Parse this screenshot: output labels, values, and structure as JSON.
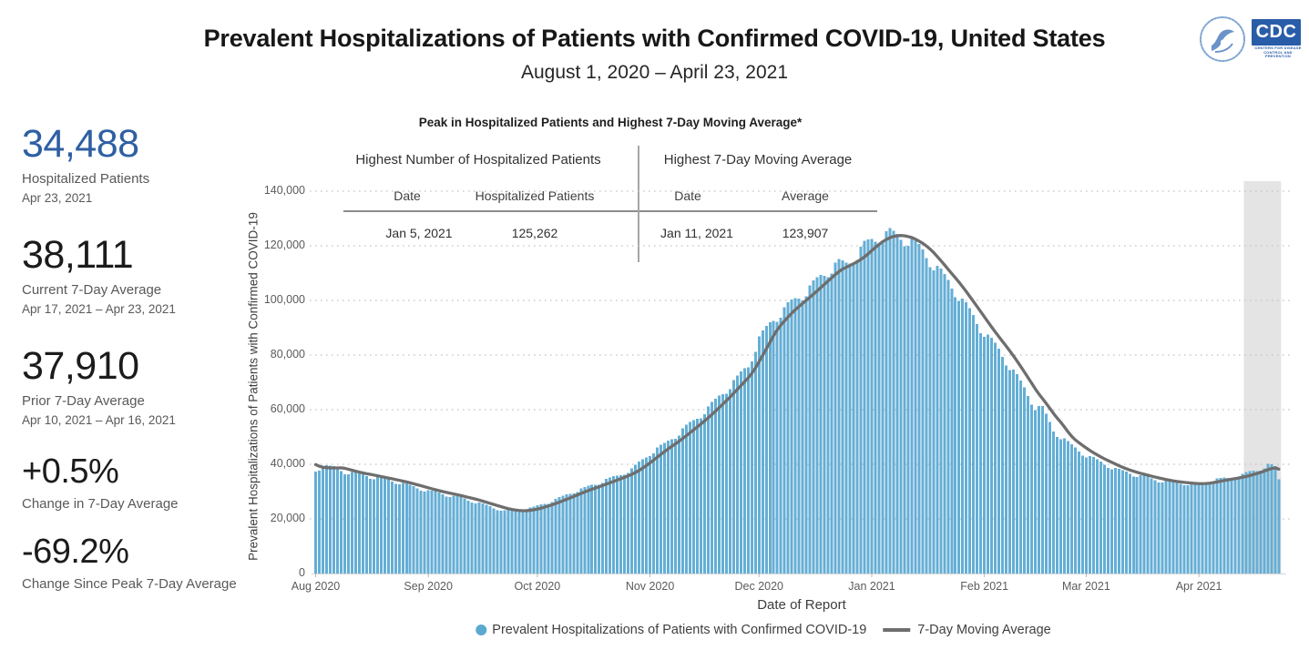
{
  "header": {
    "title": "Prevalent Hospitalizations of Patients with Confirmed COVID-19, United States",
    "subtitle": "August 1, 2020 – April 23, 2021",
    "logos": {
      "hhs_icon": "hhs-eagle-seal",
      "cdc_text": "CDC",
      "cdc_subtext_line1": "CENTERS FOR DISEASE",
      "cdc_subtext_line2": "CONTROL AND PREVENTION"
    }
  },
  "stats": [
    {
      "value": "34,488",
      "label": "Hospitalized Patients",
      "sublabel": "Apr 23, 2021",
      "color": "#2e5fa3"
    },
    {
      "value": "38,111",
      "label": "Current 7-Day Average",
      "sublabel": "Apr 17, 2021 – Apr 23, 2021",
      "color": "#1b1b1b"
    },
    {
      "value": "37,910",
      "label": "Prior 7-Day Average",
      "sublabel": "Apr 10, 2021 – Apr 16, 2021",
      "color": "#1b1b1b"
    },
    {
      "value": "+0.5%",
      "label": "Change in 7-Day Average",
      "sublabel": "",
      "color": "#1b1b1b"
    },
    {
      "value": "-69.2%",
      "label": "Change Since Peak 7-Day Average",
      "sublabel": "",
      "color": "#1b1b1b"
    }
  ],
  "peak_table": {
    "title": "Peak in Hospitalized Patients and Highest 7-Day Moving Average*",
    "group1_header": "Highest Number of Hospitalized Patients",
    "group2_header": "Highest 7-Day Moving Average",
    "col_headers": [
      "Date",
      "Hospitalized Patients",
      "Date",
      "Average"
    ],
    "row": [
      "Jan 5, 2021",
      "125,262",
      "Jan 11, 2021",
      "123,907"
    ]
  },
  "legend": {
    "items": [
      {
        "swatch": "dot",
        "color": "#5ba9d0",
        "label": "Prevalent Hospitalizations of Patients with Confirmed COVID-19"
      },
      {
        "swatch": "line",
        "color": "#6e6e6e",
        "label": "7-Day Moving Average"
      }
    ]
  },
  "chart_data": {
    "type": "bar",
    "title": "Prevalent Hospitalizations of Patients with Confirmed COVID-19, United States",
    "xlabel": "Date of Report",
    "ylabel": "Prevalent Hospitalizations of Patients with Confirmed COVID-19",
    "x_range": [
      "2020-08-01",
      "2021-04-23"
    ],
    "ylim": [
      0,
      140000
    ],
    "y_tick_values": [
      0,
      20000,
      40000,
      60000,
      80000,
      100000,
      120000,
      140000
    ],
    "y_tick_labels": [
      "0",
      "20,000",
      "40,000",
      "60,000",
      "80,000",
      "100,000",
      "120,000",
      "140,000"
    ],
    "x_tick_labels": [
      "Aug 2020",
      "Sep 2020",
      "Oct 2020",
      "Nov 2020",
      "Dec 2020",
      "Jan 2021",
      "Feb 2021",
      "Mar 2021",
      "Apr 2021"
    ],
    "x_tick_day_index": [
      0,
      31,
      61,
      92,
      122,
      153,
      184,
      212,
      243
    ],
    "grid": "horizontal-dotted",
    "legend_position": "bottom-center",
    "series": [
      {
        "name": "Prevalent Hospitalizations of Patients with Confirmed COVID-19",
        "type": "bar",
        "color": "#64aed5",
        "unit": "patients",
        "anchors_day_value_thousands": [
          [
            0,
            37.5
          ],
          [
            2,
            39.4
          ],
          [
            5,
            38.8
          ],
          [
            8,
            37.2
          ],
          [
            12,
            36.4
          ],
          [
            16,
            35.2
          ],
          [
            20,
            34.2
          ],
          [
            24,
            32.9
          ],
          [
            28,
            31.4
          ],
          [
            31,
            30.2
          ],
          [
            35,
            29.2
          ],
          [
            40,
            27.6
          ],
          [
            44,
            26.2
          ],
          [
            48,
            24.4
          ],
          [
            52,
            23.0
          ],
          [
            56,
            22.8
          ],
          [
            60,
            24.2
          ],
          [
            63,
            25.6
          ],
          [
            67,
            27.6
          ],
          [
            71,
            30.0
          ],
          [
            75,
            31.7
          ],
          [
            79,
            33.8
          ],
          [
            83,
            35.6
          ],
          [
            87,
            38.2
          ],
          [
            90,
            41.5
          ],
          [
            92,
            44.0
          ],
          [
            96,
            47.3
          ],
          [
            100,
            51.5
          ],
          [
            104,
            55.8
          ],
          [
            108,
            60.5
          ],
          [
            112,
            66.0
          ],
          [
            116,
            71.5
          ],
          [
            119,
            76.0
          ],
          [
            122,
            86.0
          ],
          [
            126,
            93.0
          ],
          [
            131,
            99.0
          ],
          [
            136,
            104.5
          ],
          [
            141,
            111.0
          ],
          [
            144,
            113.5
          ],
          [
            146,
            113.0
          ],
          [
            148,
            115.5
          ],
          [
            151,
            120.0
          ],
          [
            154,
            122.3
          ],
          [
            157,
            125.262
          ],
          [
            160,
            123.3
          ],
          [
            164,
            121.8
          ],
          [
            167,
            117.7
          ],
          [
            172,
            110.0
          ],
          [
            177,
            101.7
          ],
          [
            183,
            90.0
          ],
          [
            188,
            81.7
          ],
          [
            193,
            72.0
          ],
          [
            198,
            61.0
          ],
          [
            200,
            60.5
          ],
          [
            203,
            52.3
          ],
          [
            208,
            46.7
          ],
          [
            212,
            43.3
          ],
          [
            216,
            40.7
          ],
          [
            221,
            37.7
          ],
          [
            226,
            36.0
          ],
          [
            231,
            34.3
          ],
          [
            236,
            33.3
          ],
          [
            240,
            32.9
          ],
          [
            243,
            32.7
          ],
          [
            247,
            34.3
          ],
          [
            251,
            34.8
          ],
          [
            255,
            36.2
          ],
          [
            259,
            37.8
          ],
          [
            262,
            39.8
          ],
          [
            264,
            38.9
          ],
          [
            265,
            34.488
          ]
        ],
        "weekday_wiggle_sat_first": [
          -0.006,
          -0.022,
          -0.018,
          0.01,
          0.015,
          0.013,
          0.008
        ],
        "exact_overrides": {
          "157": 125262,
          "265": 34488
        }
      },
      {
        "name": "7-Day Moving Average",
        "type": "line",
        "color": "#6e6e6e",
        "derived": "trailing 7-day mean of daily bars",
        "pre_window_values": [
          41800,
          41300,
          40700,
          40100,
          39500,
          38600
        ]
      }
    ],
    "highlight_band": {
      "from_day_index": 256,
      "to_day_index": 265,
      "color": "#e4e4e4",
      "meaning": "most recent reporting period"
    },
    "key_points": {
      "peak_hospitalized": {
        "date": "Jan 5, 2021",
        "value": 125262
      },
      "peak_7day_average": {
        "date": "Jan 11, 2021",
        "value": 123907
      },
      "latest_hospitalized": {
        "date": "Apr 23, 2021",
        "value": 34488
      },
      "current_7day_average": 38111,
      "prior_7day_average": 37910
    }
  }
}
